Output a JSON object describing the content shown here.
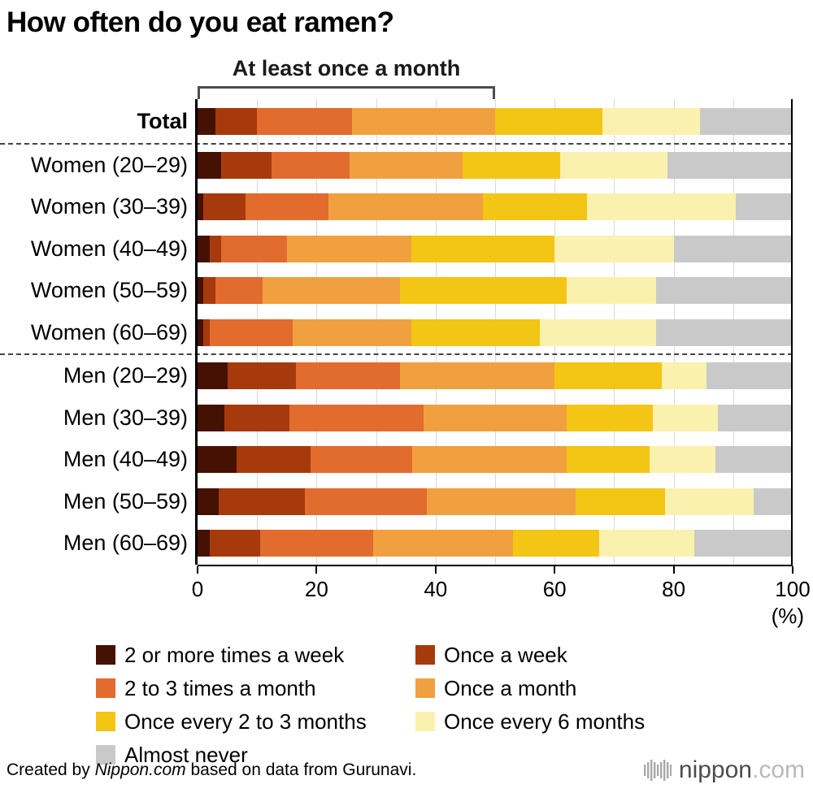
{
  "chart_data": {
    "type": "bar",
    "orientation": "horizontal",
    "stacked": true,
    "title": "How often do you eat ramen?",
    "xlabel": "",
    "ylabel": "",
    "xlim": [
      0,
      100
    ],
    "x_ticks": [
      0,
      20,
      40,
      60,
      80,
      100
    ],
    "unit_label": "(%)",
    "gridlines_every": 10,
    "legend_position": "bottom",
    "categories": [
      "Total",
      "Women (20–29)",
      "Women (30–39)",
      "Women (40–49)",
      "Women (50–59)",
      "Women (60–69)",
      "Men (20–29)",
      "Men (30–39)",
      "Men (40–49)",
      "Men (50–59)",
      "Men (60–69)"
    ],
    "separator_after_indices": [
      0,
      5
    ],
    "series": [
      {
        "name": "2 or more times a week",
        "color": "#451103",
        "values": [
          3,
          4,
          1,
          2,
          1,
          1,
          5,
          4.5,
          6.5,
          3.5,
          2
        ]
      },
      {
        "name": "Once a week",
        "color": "#a73a0c",
        "values": [
          7,
          8.5,
          7,
          2,
          2,
          1,
          11.5,
          11,
          12.5,
          14.5,
          8.5
        ]
      },
      {
        "name": "2 to 3 times a month",
        "color": "#e26b2e",
        "values": [
          16,
          13,
          14,
          11,
          8,
          14,
          17.5,
          22.5,
          17,
          20.5,
          19
        ]
      },
      {
        "name": "Once a month",
        "color": "#f1a03f",
        "values": [
          24,
          19,
          26,
          21,
          23,
          20,
          26,
          24,
          26,
          25,
          23.5
        ]
      },
      {
        "name": "Once every 2 to 3 months",
        "color": "#f3c515",
        "values": [
          18,
          16.5,
          17.5,
          24,
          28,
          21.5,
          18,
          14.5,
          14,
          15,
          14.5
        ]
      },
      {
        "name": "Once every 6 months",
        "color": "#fbf1ae",
        "values": [
          16.5,
          18,
          25,
          20,
          15,
          19.5,
          7.5,
          11,
          11,
          15,
          16
        ]
      },
      {
        "name": "Almost never",
        "color": "#c9c9c9",
        "values": [
          15.5,
          21,
          9.5,
          20,
          23,
          23,
          14.5,
          12.5,
          13,
          6.5,
          16.5
        ]
      }
    ]
  },
  "annotation": {
    "label": "At least once a month",
    "from_percent": 0,
    "to_percent": 50
  },
  "footer": {
    "credit_prefix": "Created by ",
    "credit_brand": "Nippon.com",
    "credit_suffix": " based on data from Gurunavi."
  },
  "logo": {
    "name": "nippon",
    "tld": ".com"
  }
}
